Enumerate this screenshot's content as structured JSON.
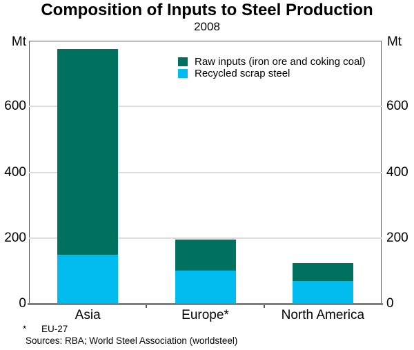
{
  "header": {
    "title": "Composition of Inputs to Steel Production",
    "subtitle": "2008"
  },
  "chart_data": {
    "type": "bar",
    "stacked": true,
    "title": "Composition of Inputs to Steel Production",
    "subtitle": "2008",
    "unit": "Mt",
    "categories": [
      "Asia",
      "Europe*",
      "North America"
    ],
    "series": [
      {
        "name": "Raw inputs (iron ore and coking coal)",
        "color": "#00715f",
        "values": [
          625,
          95,
          53
        ]
      },
      {
        "name": "Recycled scrap steel",
        "color": "#00bbee",
        "values": [
          150,
          100,
          70
        ]
      }
    ],
    "totals": [
      775,
      195,
      123
    ],
    "ylim": [
      0,
      800
    ],
    "yticks": [
      0,
      200,
      400,
      600
    ],
    "grid": true,
    "legend_position": "top-right-inside",
    "colors": {
      "raw_inputs": "#00715f",
      "recycled_scrap": "#00bbee",
      "gridline": "#dcdcdc",
      "frame": "#595959",
      "axis_line": "#7f7f7f"
    }
  },
  "footnotes": {
    "marker": "*",
    "note": "EU-27",
    "sources": "Sources: RBA; World Steel Association (worldsteel)"
  }
}
